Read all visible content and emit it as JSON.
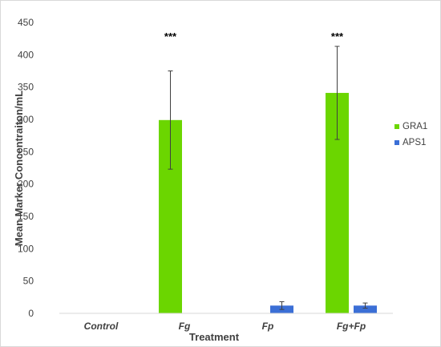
{
  "chart_data": {
    "type": "bar",
    "xlabel": "Treatment",
    "ylabel": "Mean Marker Concentraiton/mL",
    "ylim": [
      0,
      450
    ],
    "yticks": [
      0,
      50,
      100,
      150,
      200,
      250,
      300,
      350,
      400,
      450
    ],
    "categories": [
      "Control",
      "Fg",
      "Fp",
      "Fg+Fp"
    ],
    "series": [
      {
        "name": "GRA1",
        "color": "#6bd600",
        "values": [
          0,
          299,
          0,
          341
        ],
        "errors": [
          0,
          76,
          0,
          72
        ]
      },
      {
        "name": "APS1",
        "color": "#3b6fd6",
        "values": [
          0,
          0,
          12,
          12
        ],
        "errors": [
          0,
          0,
          6,
          4
        ]
      }
    ],
    "annotations": [
      {
        "category": "Fg",
        "text": "***"
      },
      {
        "category": "Fg+Fp",
        "text": "***"
      }
    ],
    "legend": "right",
    "grid": false
  }
}
